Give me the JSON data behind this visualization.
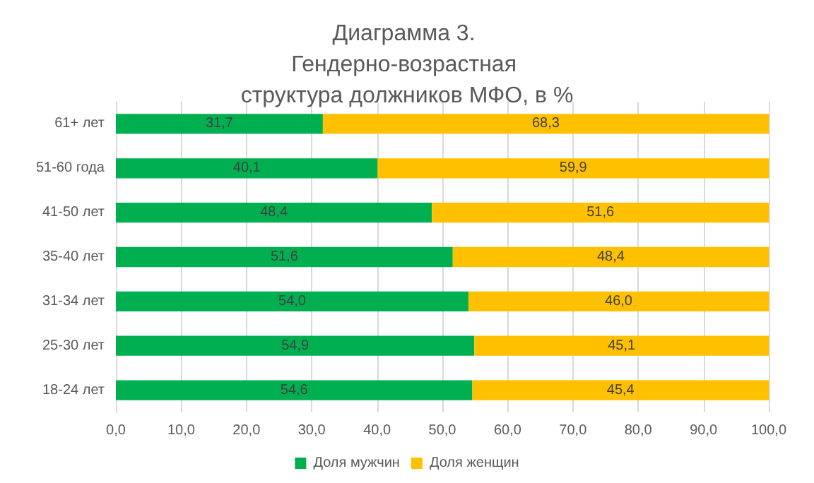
{
  "chart_data": {
    "type": "bar",
    "orientation": "horizontal",
    "stacked": true,
    "title": "Диаграмма 3. Гендерно-возрастная структура должников МФО, в %",
    "categories": [
      "61+ лет",
      "51-60 года",
      "41-50 лет",
      "35-40 лет",
      "31-34 лет",
      "25-30 лет",
      "18-24 лет"
    ],
    "series": [
      {
        "name": "Доля мужчин",
        "color": "#00b050",
        "values": [
          31.7,
          40.1,
          48.4,
          51.6,
          54.0,
          54.9,
          54.6
        ],
        "value_labels": [
          "31,7",
          "40,1",
          "48,4",
          "51,6",
          "54,0",
          "54,9",
          "54,6"
        ]
      },
      {
        "name": "Доля женщин",
        "color": "#ffc000",
        "values": [
          68.3,
          59.9,
          51.6,
          48.4,
          46.0,
          45.1,
          45.4
        ],
        "value_labels": [
          "68,3",
          "59,9",
          "51,6",
          "48,4",
          "46,0",
          "45,1",
          "45,4"
        ]
      }
    ],
    "xlim": [
      0,
      100
    ],
    "xticks": [
      {
        "value": 0,
        "label": "0,0"
      },
      {
        "value": 10,
        "label": "10,0"
      },
      {
        "value": 20,
        "label": "20,0"
      },
      {
        "value": 30,
        "label": "30,0"
      },
      {
        "value": 40,
        "label": "40,0"
      },
      {
        "value": 50,
        "label": "50,0"
      },
      {
        "value": 60,
        "label": "60,0"
      },
      {
        "value": 70,
        "label": "70,0"
      },
      {
        "value": 80,
        "label": "80,0"
      },
      {
        "value": 90,
        "label": "90,0"
      },
      {
        "value": 100,
        "label": "100,0"
      }
    ],
    "grid": "x",
    "legend": "bottom"
  }
}
